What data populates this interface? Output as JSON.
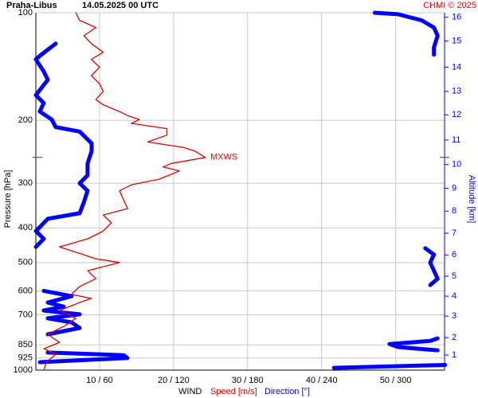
{
  "chart_data": {
    "type": "line",
    "title": "Praha-Libus",
    "subtitle": "14.05.2025 00 UTC",
    "credit": "CHMI © 2025",
    "ylabel": "Pressure [hPa]",
    "y2label": "Altitude [km]",
    "xlabel": "WIND",
    "ylim": [
      100,
      1000
    ],
    "log_y": true,
    "yticks": [
      100,
      200,
      300,
      400,
      500,
      600,
      700,
      850,
      925,
      1000
    ],
    "xlim": [
      1.4,
      56.6
    ],
    "x2lim": [
      8.4,
      339.6
    ],
    "xticks": [
      {
        "value": 10,
        "label": "10 / 60"
      },
      {
        "value": 20,
        "label": "20 / 120"
      },
      {
        "value": 30,
        "label": "30 / 180"
      },
      {
        "value": 40,
        "label": "40 / 240"
      },
      {
        "value": 50,
        "label": "50 / 300"
      }
    ],
    "grid": true,
    "altitude_ticks": {
      "km": [
        1,
        2,
        3,
        4,
        5,
        6,
        7,
        8,
        9,
        10,
        11,
        12,
        13,
        14,
        15,
        16
      ],
      "pressure": [
        907,
        811,
        706,
        621,
        546,
        476,
        414,
        359,
        310,
        266,
        227,
        193,
        166,
        142,
        120,
        103
      ]
    },
    "annotation": {
      "text": "MXWS",
      "pressure": 254
    },
    "series": [
      {
        "name": "Speed [m/s]",
        "color": "#e00000",
        "pressure": [
          1000,
          950,
          903,
          871,
          836,
          794,
          754,
          716,
          681,
          647,
          630,
          614,
          584,
          555,
          527,
          500,
          488,
          471,
          452,
          429,
          408,
          387,
          368,
          353,
          332,
          315,
          303,
          292,
          277,
          270,
          264,
          254,
          244,
          238,
          230,
          220,
          211,
          204,
          199,
          194,
          189,
          181,
          175,
          166,
          158,
          150,
          142,
          135,
          129,
          122,
          116,
          110,
          105,
          100
        ],
        "values": [
          2.5,
          2.8,
          4.1,
          2.5,
          4.6,
          3.0,
          5.2,
          6.8,
          4.6,
          7.3,
          8.9,
          6.2,
          7.3,
          9.5,
          8.4,
          12.7,
          9.5,
          7.3,
          4.6,
          8.4,
          10.5,
          11.6,
          10.5,
          13.8,
          13.2,
          12.7,
          14.3,
          18.1,
          20.8,
          18.6,
          19.7,
          24.3,
          22.9,
          21.3,
          16.5,
          19.1,
          19.1,
          14.3,
          15.4,
          13.8,
          12.7,
          10.5,
          9.5,
          10.5,
          10.0,
          8.9,
          10.0,
          8.9,
          10.5,
          8.9,
          7.9,
          9.5,
          7.3,
          6.8
        ]
      },
      {
        "name": "Direction [°]",
        "color": "#0000ff",
        "axis": "x2",
        "pressure": [
          985,
          967,
          null,
          950,
          925,
          908,
          893,
          null,
          880,
          862,
          845,
          828,
          815,
          null,
          794,
          762,
          735,
          716,
          698,
          681,
          664,
          647,
          621,
          600,
          null,
          578,
          555,
          527,
          500,
          475,
          456,
          null,
          452,
          429,
          408,
          398,
          377,
          364,
          341,
          315,
          300,
          285,
          264,
          244,
          232,
          215,
          209,
          199,
          189,
          179,
          170,
          154,
          146,
          135,
          132,
          122,
          null,
          131,
          125,
          116,
          110,
          105,
          101,
          100
        ],
        "values": [
          250,
          340,
          null,
          11.6,
          82.6,
          79.4,
          18.1,
          null,
          334,
          302,
          295,
          328,
          334,
          null,
          18.1,
          43.9,
          37.4,
          18.1,
          43.9,
          14.8,
          31.0,
          18.1,
          37.4,
          14.8,
          null,
          328,
          334,
          331,
          328,
          331,
          324,
          null,
          8.4,
          14.8,
          8.4,
          11.6,
          18.1,
          43.9,
          47.1,
          50.3,
          43.9,
          50.3,
          50.3,
          53.6,
          53.6,
          43.9,
          24.5,
          21.3,
          11.6,
          14.8,
          8.4,
          18.1,
          14.8,
          8.4,
          11.6,
          24.5,
          null,
          331,
          331,
          334,
          331,
          321,
          302,
          283
        ]
      }
    ]
  }
}
